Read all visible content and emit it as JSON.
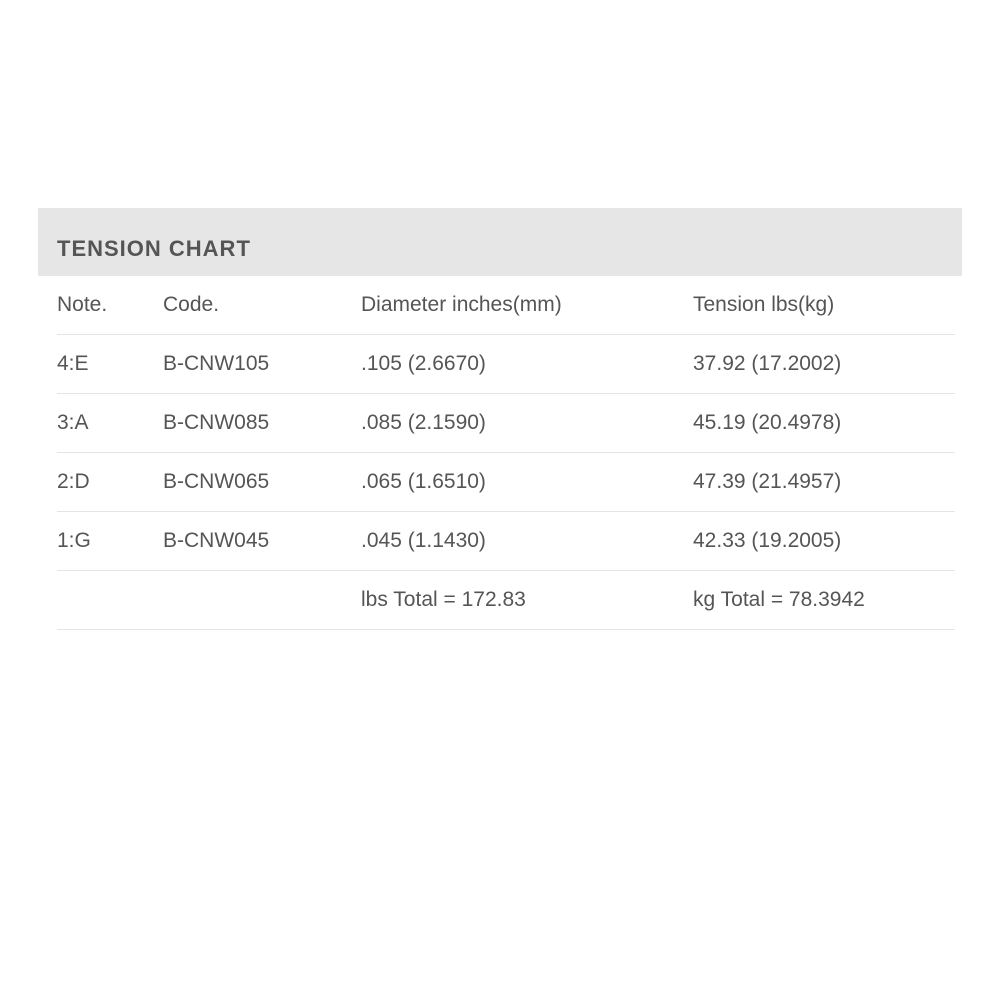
{
  "title": "TENSION CHART",
  "columns": [
    "Note.",
    "Code.",
    "Diameter inches(mm)",
    "Tension lbs(kg)"
  ],
  "rows": [
    [
      "4:E",
      "B-CNW105",
      ".105 (2.6670)",
      "37.92 (17.2002)"
    ],
    [
      "3:A",
      "B-CNW085",
      ".085 (2.1590)",
      "45.19 (20.4978)"
    ],
    [
      "2:D",
      "B-CNW065",
      ".065 (1.6510)",
      "47.39 (21.4957)"
    ],
    [
      "1:G",
      "B-CNW045",
      ".045 (1.1430)",
      "42.33 (19.2005)"
    ]
  ],
  "totals": {
    "lbs": "lbs Total = 172.83",
    "kg": "kg Total = 78.3942"
  }
}
